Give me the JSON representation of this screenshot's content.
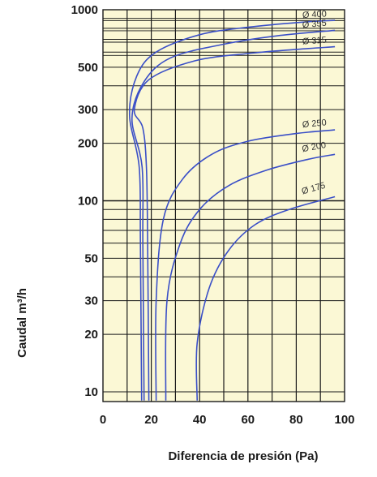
{
  "chart_data": {
    "type": "line",
    "xlabel": "Diferencia de presión (Pa)",
    "ylabel": "Caudal m³/h",
    "xlim": [
      0,
      100
    ],
    "ylim": [
      10,
      1000
    ],
    "y_scale": "log",
    "grid": true,
    "background_color": "#fbf8d5",
    "line_color": "#3a4fc7",
    "x_ticks": [
      {
        "value": 0,
        "label": "0"
      },
      {
        "value": 20,
        "label": "20"
      },
      {
        "value": 40,
        "label": "40"
      },
      {
        "value": 60,
        "label": "60"
      },
      {
        "value": 80,
        "label": "80"
      },
      {
        "value": 100,
        "label": "100"
      }
    ],
    "y_ticks": [
      {
        "value": 10,
        "label": "10"
      },
      {
        "value": 20,
        "label": "20"
      },
      {
        "value": 30,
        "label": "30"
      },
      {
        "value": 50,
        "label": "50"
      },
      {
        "value": 100,
        "label": "100"
      },
      {
        "value": 200,
        "label": "200"
      },
      {
        "value": 300,
        "label": "300"
      },
      {
        "value": 500,
        "label": "500"
      },
      {
        "value": 1000,
        "label": "1000"
      }
    ],
    "series": [
      {
        "name": "Ø 400",
        "points": [
          [
            16,
            9
          ],
          [
            15.5,
            60
          ],
          [
            15,
            150
          ],
          [
            11,
            280
          ],
          [
            14,
            450
          ],
          [
            22,
            600
          ],
          [
            40,
            740
          ],
          [
            60,
            810
          ],
          [
            82,
            860
          ],
          [
            96,
            880
          ]
        ]
      },
      {
        "name": "Ø 355",
        "points": [
          [
            17,
            9
          ],
          [
            16.5,
            60
          ],
          [
            16.2,
            150
          ],
          [
            12,
            270
          ],
          [
            17,
            420
          ],
          [
            28,
            560
          ],
          [
            50,
            660
          ],
          [
            72,
            730
          ],
          [
            96,
            780
          ]
        ]
      },
      {
        "name": "Ø 315",
        "points": [
          [
            19,
            9
          ],
          [
            18.5,
            60
          ],
          [
            18,
            150
          ],
          [
            16.5,
            240
          ],
          [
            13,
            300
          ],
          [
            19,
            430
          ],
          [
            38,
            540
          ],
          [
            60,
            590
          ],
          [
            80,
            620
          ],
          [
            96,
            640
          ]
        ]
      },
      {
        "name": "Ø 250",
        "points": [
          [
            22,
            9
          ],
          [
            22,
            30
          ],
          [
            25,
            80
          ],
          [
            33,
            130
          ],
          [
            45,
            175
          ],
          [
            60,
            205
          ],
          [
            80,
            225
          ],
          [
            96,
            235
          ]
        ]
      },
      {
        "name": "Ø 200",
        "points": [
          [
            26,
            9
          ],
          [
            26.5,
            30
          ],
          [
            32,
            60
          ],
          [
            40,
            90
          ],
          [
            52,
            120
          ],
          [
            68,
            145
          ],
          [
            85,
            165
          ],
          [
            96,
            175
          ]
        ]
      },
      {
        "name": "Ø 175",
        "points": [
          [
            39,
            9
          ],
          [
            39,
            18
          ],
          [
            44,
            35
          ],
          [
            52,
            55
          ],
          [
            63,
            75
          ],
          [
            77,
            90
          ],
          [
            96,
            105
          ]
        ]
      }
    ]
  }
}
